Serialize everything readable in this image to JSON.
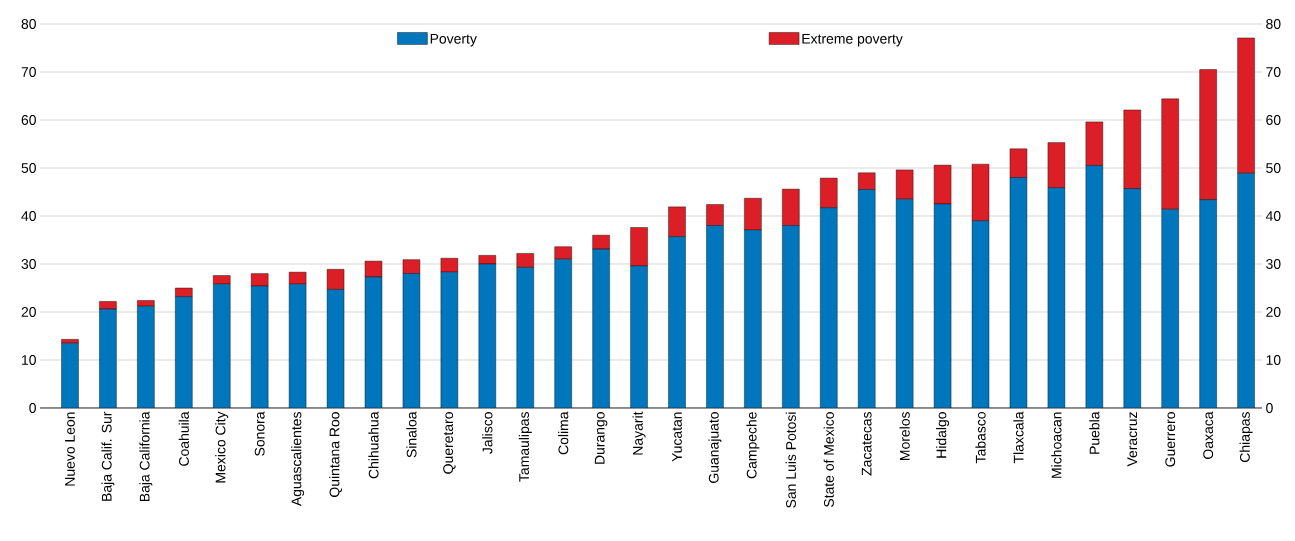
{
  "chart_data": {
    "type": "bar",
    "stacked": true,
    "categories": [
      "Nuevo Leon",
      "Baja Calif. Sur",
      "Baja California",
      "Coahuila",
      "Mexico City",
      "Sonora",
      "Aguascalientes",
      "Quintana Roo",
      "Chihuahua",
      "Sinaloa",
      "Queretaro",
      "Jalisco",
      "Tamaulipas",
      "Colima",
      "Durango",
      "Nayarit",
      "Yucatan",
      "Guanajuato",
      "Campeche",
      "San Luis Potosi",
      "State of Mexico",
      "Zacatecas",
      "Morelos",
      "Hidalgo",
      "Tabasco",
      "Tlaxcala",
      "Michoacan",
      "Puebla",
      "Veracruz",
      "Guerrero",
      "Oaxaca",
      "Chiapas"
    ],
    "series": [
      {
        "name": "Poverty",
        "color": "#0077bd",
        "values": [
          13.5,
          20.6,
          21.2,
          23.2,
          25.8,
          25.4,
          25.8,
          24.7,
          27.3,
          28,
          28.3,
          30,
          29.3,
          31,
          33.1,
          29.6,
          35.7,
          38,
          37.1,
          38,
          41.7,
          45.5,
          43.5,
          42.5,
          39,
          48,
          45.9,
          50.5,
          45.7,
          41.4,
          43.4,
          48.9
        ]
      },
      {
        "name": "Extreme poverty",
        "color": "#dc1f26",
        "values": [
          0.8,
          1.6,
          1.2,
          1.8,
          1.8,
          2.6,
          2.5,
          4.2,
          3.3,
          2.9,
          2.9,
          1.8,
          2.9,
          2.6,
          2.9,
          8,
          6.2,
          4.4,
          6.6,
          7.6,
          6.2,
          3.5,
          6.1,
          8.1,
          11.8,
          6,
          9.4,
          9.1,
          16.4,
          23,
          27.1,
          28.2
        ]
      }
    ],
    "ylim": [
      0,
      80
    ],
    "yticks": [
      0,
      10,
      20,
      30,
      40,
      50,
      60,
      70,
      80
    ],
    "y2lim": [
      0,
      80
    ],
    "y2ticks": [
      0,
      10,
      20,
      30,
      40,
      50,
      60,
      70,
      80
    ],
    "grid": "y",
    "legend": "top"
  }
}
